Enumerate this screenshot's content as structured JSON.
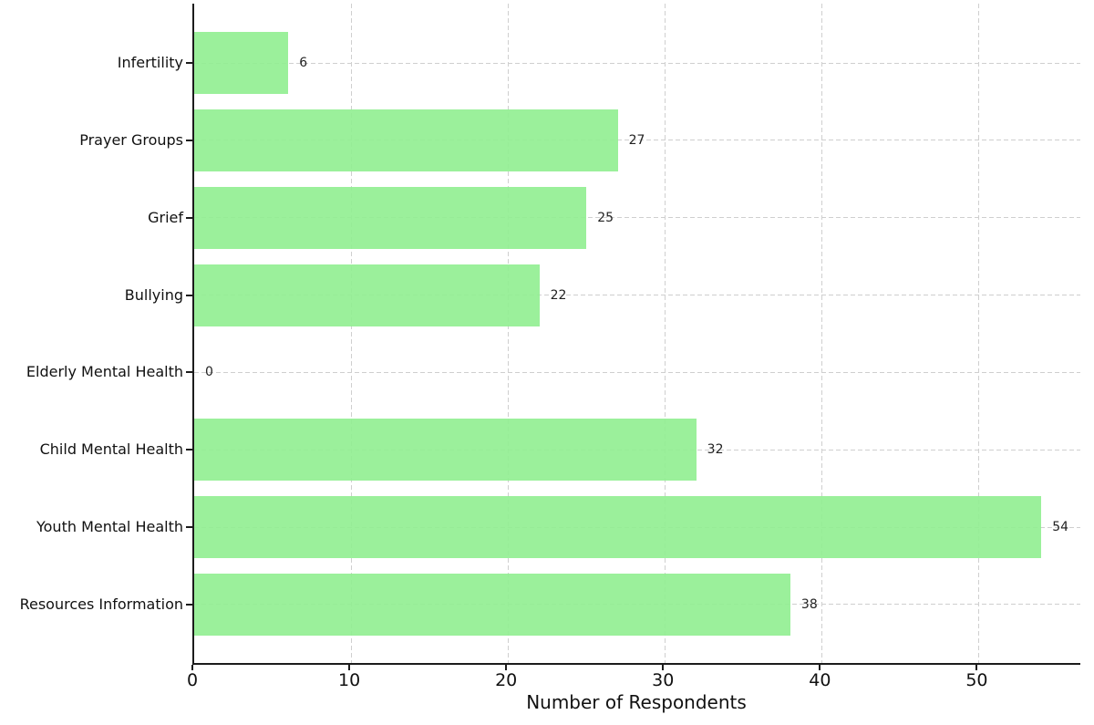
{
  "figure": {
    "background_color": "#ffffff"
  },
  "chart_data": {
    "type": "bar",
    "orientation": "horizontal",
    "title": "",
    "xlabel": "Number of Respondents",
    "ylabel": "",
    "categories": [
      "Infertility",
      "Prayer Groups",
      "Grief",
      "Bullying",
      "Elderly Mental Health",
      "Child Mental Health",
      "Youth Mental Health",
      "Resources Information"
    ],
    "values": [
      6,
      27,
      25,
      22,
      0,
      32,
      54,
      38
    ],
    "value_labels_shown": true,
    "value_labels": [
      "6",
      "27",
      "25",
      "22",
      "0",
      "32",
      "54",
      "38"
    ],
    "xticks": [
      0,
      10,
      20,
      30,
      40,
      50
    ],
    "xtick_labels": [
      "0",
      "10",
      "20",
      "30",
      "40",
      "50"
    ],
    "xlim": [
      0,
      56.6
    ],
    "grid": {
      "visible": true,
      "style": "dashed",
      "color": "#cfcfcf",
      "axes": "both"
    },
    "legend": "none",
    "bar_color": "#90ee90",
    "axis_color": "#1c1c1c",
    "text_color": "#111111"
  }
}
